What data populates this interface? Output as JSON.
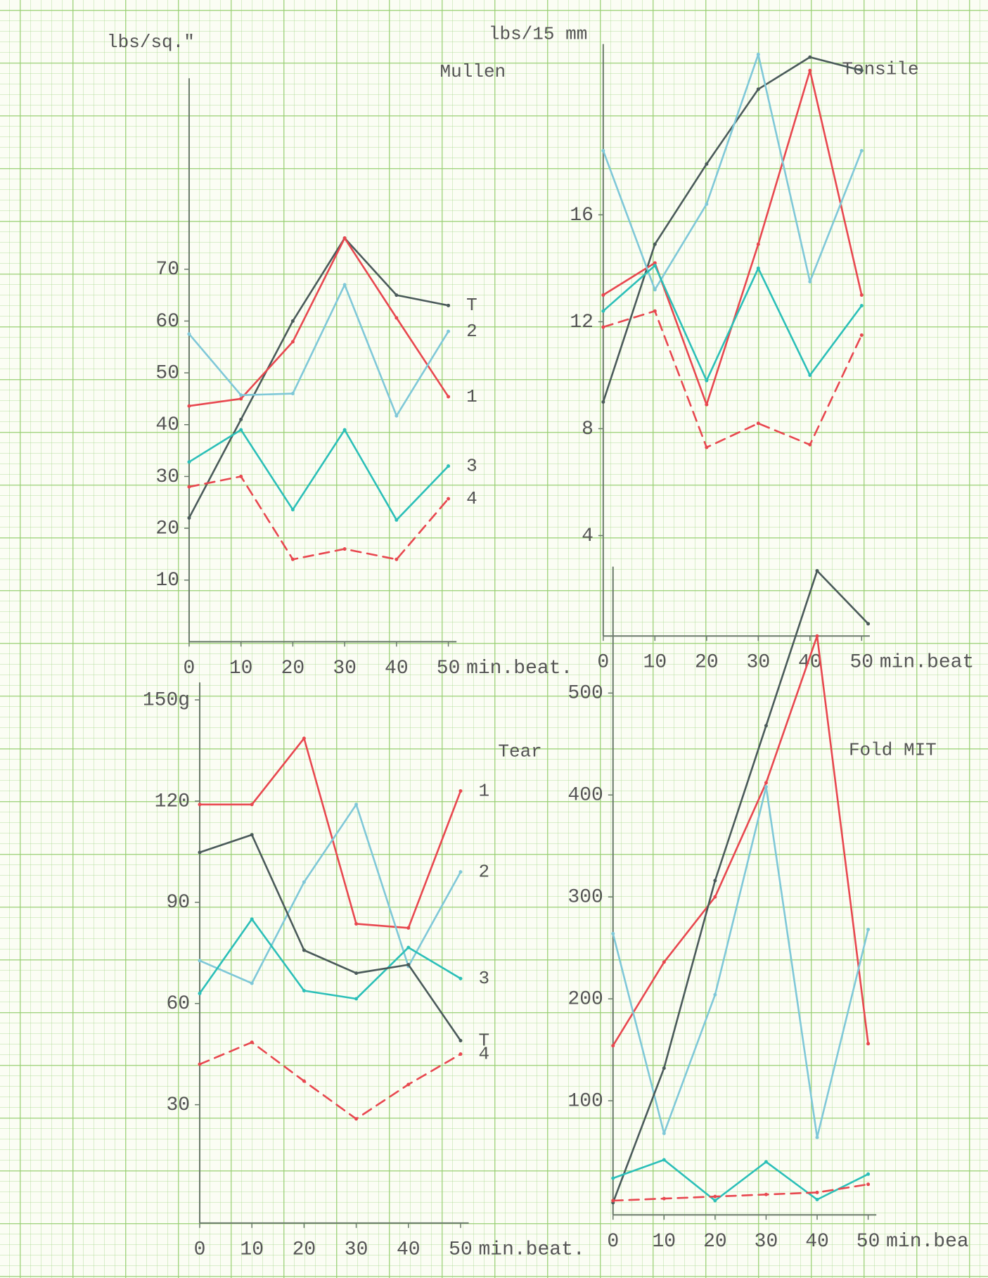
{
  "chart_data": [
    {
      "type": "line",
      "title": "Mullen",
      "y_label": "lbs/sq.\"",
      "x_label": "min.beat.",
      "x": [
        0,
        10,
        20,
        30,
        40,
        50
      ],
      "xlim": [
        0,
        50
      ],
      "xticks": [
        0,
        10,
        20,
        30,
        40,
        50
      ],
      "ylim": [
        0,
        110
      ],
      "yticks": [
        10,
        20,
        30,
        40,
        50,
        60,
        70
      ],
      "series": [
        {
          "name": "T",
          "color": "#4a5a5a",
          "values": [
            22,
            41,
            60,
            76,
            65,
            63
          ]
        },
        {
          "name": "1",
          "color": "#e8474f",
          "values": [
            43.6,
            45,
            56,
            76,
            60.6,
            45.4
          ]
        },
        {
          "name": "2",
          "color": "#7fc8d8",
          "values": [
            57.5,
            45.7,
            46,
            67,
            41.7,
            58
          ]
        },
        {
          "name": "3",
          "color": "#2bbfb8",
          "values": [
            32.8,
            39,
            23.6,
            39,
            21.6,
            32
          ]
        },
        {
          "name": "4",
          "color": "#e8474f",
          "dashed": true,
          "values": [
            28,
            30,
            14,
            16,
            14,
            25.7
          ]
        }
      ]
    },
    {
      "type": "line",
      "title": "Tensile",
      "y_label": "lbs/15 mm",
      "x_label": "min.beat",
      "x": [
        0,
        10,
        20,
        30,
        40,
        50
      ],
      "xlim": [
        0,
        50
      ],
      "xticks": [
        0,
        10,
        20,
        30,
        40,
        50
      ],
      "ylim": [
        0,
        23
      ],
      "yticks": [
        4,
        8,
        12,
        16
      ],
      "series": [
        {
          "color": "#4a5a5a",
          "values": [
            9,
            14.9,
            17.9,
            20.7,
            21.9,
            21.4
          ]
        },
        {
          "color": "#e8474f",
          "values": [
            13,
            14.2,
            8.9,
            14.9,
            21.4,
            13
          ]
        },
        {
          "color": "#7fc8d8",
          "values": [
            18.4,
            13.2,
            16.4,
            22,
            13.5,
            18.4
          ]
        },
        {
          "color": "#2bbfb8",
          "values": [
            12.4,
            14.1,
            9.8,
            14,
            10,
            12.6
          ]
        },
        {
          "color": "#e8474f",
          "dashed": true,
          "values": [
            11.8,
            12.4,
            7.3,
            8.2,
            7.4,
            11.5
          ]
        }
      ]
    },
    {
      "type": "line",
      "title": "Tear",
      "x_label": "min.beat.",
      "x": [
        0,
        10,
        20,
        30,
        40,
        50
      ],
      "xlim": [
        0,
        50
      ],
      "xticks": [
        0,
        10,
        20,
        30,
        40,
        50
      ],
      "ylim": [
        0,
        160
      ],
      "yticks": [
        30,
        60,
        90,
        120,
        {
          "value": 150,
          "label": "150g"
        }
      ],
      "series": [
        {
          "name": "1",
          "color": "#e8474f",
          "values": [
            119,
            119,
            138.6,
            83.6,
            82.4,
            123
          ]
        },
        {
          "name": "2",
          "color": "#7fc8d8",
          "values": [
            72.7,
            66,
            96,
            119,
            71,
            99
          ]
        },
        {
          "name": "3",
          "color": "#2bbfb8",
          "values": [
            63,
            85,
            63.8,
            61.4,
            76.6,
            67.4
          ]
        },
        {
          "name": "T",
          "color": "#4a5a5a",
          "values": [
            104.8,
            110,
            75.8,
            69,
            71.5,
            49
          ]
        },
        {
          "name": "4",
          "color": "#e8474f",
          "dashed": true,
          "values": [
            42,
            48.5,
            37,
            25.8,
            36,
            45
          ]
        }
      ]
    },
    {
      "type": "line",
      "title": "Fold MIT",
      "x_label": "min.bea",
      "x": [
        0,
        10,
        20,
        30,
        40,
        50
      ],
      "xlim": [
        0,
        50
      ],
      "xticks": [
        0,
        10,
        20,
        30,
        40,
        50
      ],
      "ylim": [
        0,
        640
      ],
      "yticks": [
        100,
        200,
        300,
        400,
        500
      ],
      "series": [
        {
          "color": "#e8474f",
          "values": [
            154,
            236,
            300,
            412,
            556,
            156
          ]
        },
        {
          "color": "#7fc8d8",
          "values": [
            264,
            68,
            204,
            408,
            64,
            268
          ]
        },
        {
          "color": "#4a5a5a",
          "values": [
            0,
            132,
            316,
            468,
            620,
            568
          ]
        },
        {
          "color": "#2bbfb8",
          "values": [
            24,
            42,
            2,
            40,
            3,
            28
          ]
        },
        {
          "color": "#e8474f",
          "dashed": true,
          "values": [
            2,
            4,
            6,
            8,
            10,
            18
          ]
        }
      ]
    }
  ]
}
